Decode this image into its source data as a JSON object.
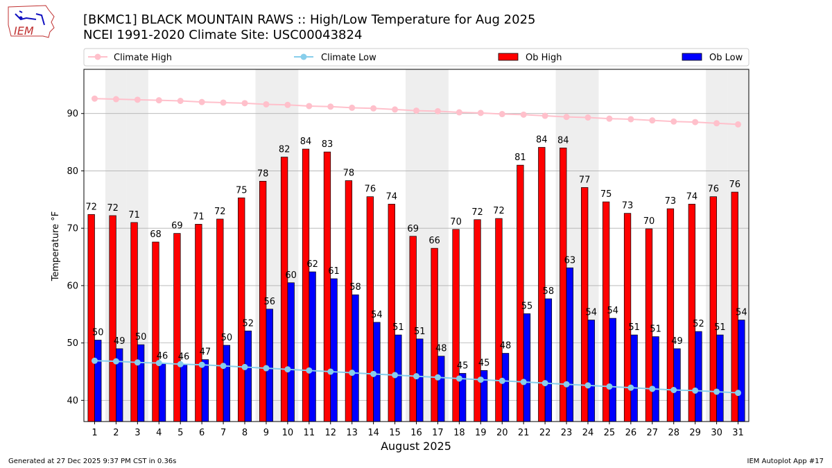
{
  "header": {
    "title_line1": "[BKMC1] BLACK MOUNTAIN RAWS :: High/Low Temperature for Aug 2025",
    "title_line2": "NCEI 1991-2020 Climate Site: USC00043824",
    "logo_text": "IEM"
  },
  "footer": {
    "generated": "Generated at 27 Dec 2025 9:37 PM CST in 0.36s",
    "app": "IEM Autoplot App #17"
  },
  "colors": {
    "ob_high": "#ff0000",
    "ob_low": "#0000ff",
    "climate_high": "#ffc0cb",
    "climate_low": "#87ceeb",
    "weekend_band": "#eeeeee",
    "grid": "#b0b0b0"
  },
  "chart_data": {
    "type": "bar",
    "title": "[BKMC1] BLACK MOUNTAIN RAWS :: High/Low Temperature for Aug 2025",
    "subtitle": "NCEI 1991-2020 Climate Site: USC00043824",
    "xlabel": "August 2025",
    "ylabel": "Temperature °F",
    "ylim": [
      36.3,
      97.7
    ],
    "yticks": [
      40,
      50,
      60,
      70,
      80,
      90
    ],
    "grid": true,
    "legend_position": "top",
    "categories": [
      "1",
      "2",
      "3",
      "4",
      "5",
      "6",
      "7",
      "8",
      "9",
      "10",
      "11",
      "12",
      "13",
      "14",
      "15",
      "16",
      "17",
      "18",
      "19",
      "20",
      "21",
      "22",
      "23",
      "24",
      "25",
      "26",
      "27",
      "28",
      "29",
      "30",
      "31"
    ],
    "shaded_days": [
      2,
      3,
      9,
      10,
      16,
      17,
      23,
      24,
      30,
      31
    ],
    "series": [
      {
        "name": "Climate High",
        "kind": "line",
        "values": [
          92.6,
          92.5,
          92.4,
          92.3,
          92.2,
          92.0,
          91.9,
          91.8,
          91.6,
          91.5,
          91.3,
          91.2,
          91.0,
          90.9,
          90.7,
          90.5,
          90.4,
          90.2,
          90.1,
          89.9,
          89.8,
          89.6,
          89.4,
          89.3,
          89.1,
          89.0,
          88.8,
          88.6,
          88.5,
          88.3,
          88.1
        ]
      },
      {
        "name": "Climate Low",
        "kind": "line",
        "values": [
          46.9,
          46.8,
          46.6,
          46.5,
          46.3,
          46.2,
          46.0,
          45.8,
          45.6,
          45.4,
          45.2,
          45.0,
          44.8,
          44.6,
          44.4,
          44.2,
          44.0,
          43.8,
          43.6,
          43.4,
          43.2,
          43.0,
          42.8,
          42.6,
          42.4,
          42.2,
          42.0,
          41.8,
          41.7,
          41.5,
          41.3
        ]
      },
      {
        "name": "Ob High",
        "kind": "bar",
        "values": [
          72.4,
          72.2,
          71.0,
          67.6,
          69.1,
          70.7,
          71.6,
          75.3,
          78.2,
          82.4,
          83.8,
          83.3,
          78.3,
          75.5,
          74.2,
          68.6,
          66.5,
          69.8,
          71.5,
          71.7,
          81.0,
          84.1,
          84.0,
          77.1,
          74.6,
          72.6,
          69.9,
          73.4,
          74.2,
          75.5,
          76.3
        ]
      },
      {
        "name": "Ob Low",
        "kind": "bar",
        "values": [
          50.5,
          49.0,
          49.7,
          46.4,
          46.3,
          47.1,
          49.6,
          52.1,
          55.9,
          60.5,
          62.4,
          61.2,
          58.4,
          53.6,
          51.4,
          50.7,
          47.7,
          44.7,
          45.2,
          48.2,
          55.1,
          57.7,
          63.1,
          54.0,
          54.3,
          51.4,
          51.1,
          49.0,
          52.0,
          51.4,
          54.0
        ]
      }
    ],
    "labels": {
      "ob_high": [
        "72",
        "72",
        "71",
        "68",
        "69",
        "71",
        "72",
        "75",
        "78",
        "82",
        "84",
        "83",
        "78",
        "76",
        "74",
        "69",
        "66",
        "70",
        "72",
        "72",
        "81",
        "84",
        "84",
        "77",
        "75",
        "73",
        "70",
        "73",
        "74",
        "76",
        "76"
      ],
      "ob_low": [
        "50",
        "49",
        "50",
        "46",
        "46",
        "47",
        "50",
        "52",
        "56",
        "60",
        "62",
        "61",
        "58",
        "54",
        "51",
        "51",
        "48",
        "45",
        "45",
        "48",
        "55",
        "58",
        "63",
        "54",
        "54",
        "51",
        "51",
        "49",
        "52",
        "51",
        "54"
      ]
    }
  }
}
